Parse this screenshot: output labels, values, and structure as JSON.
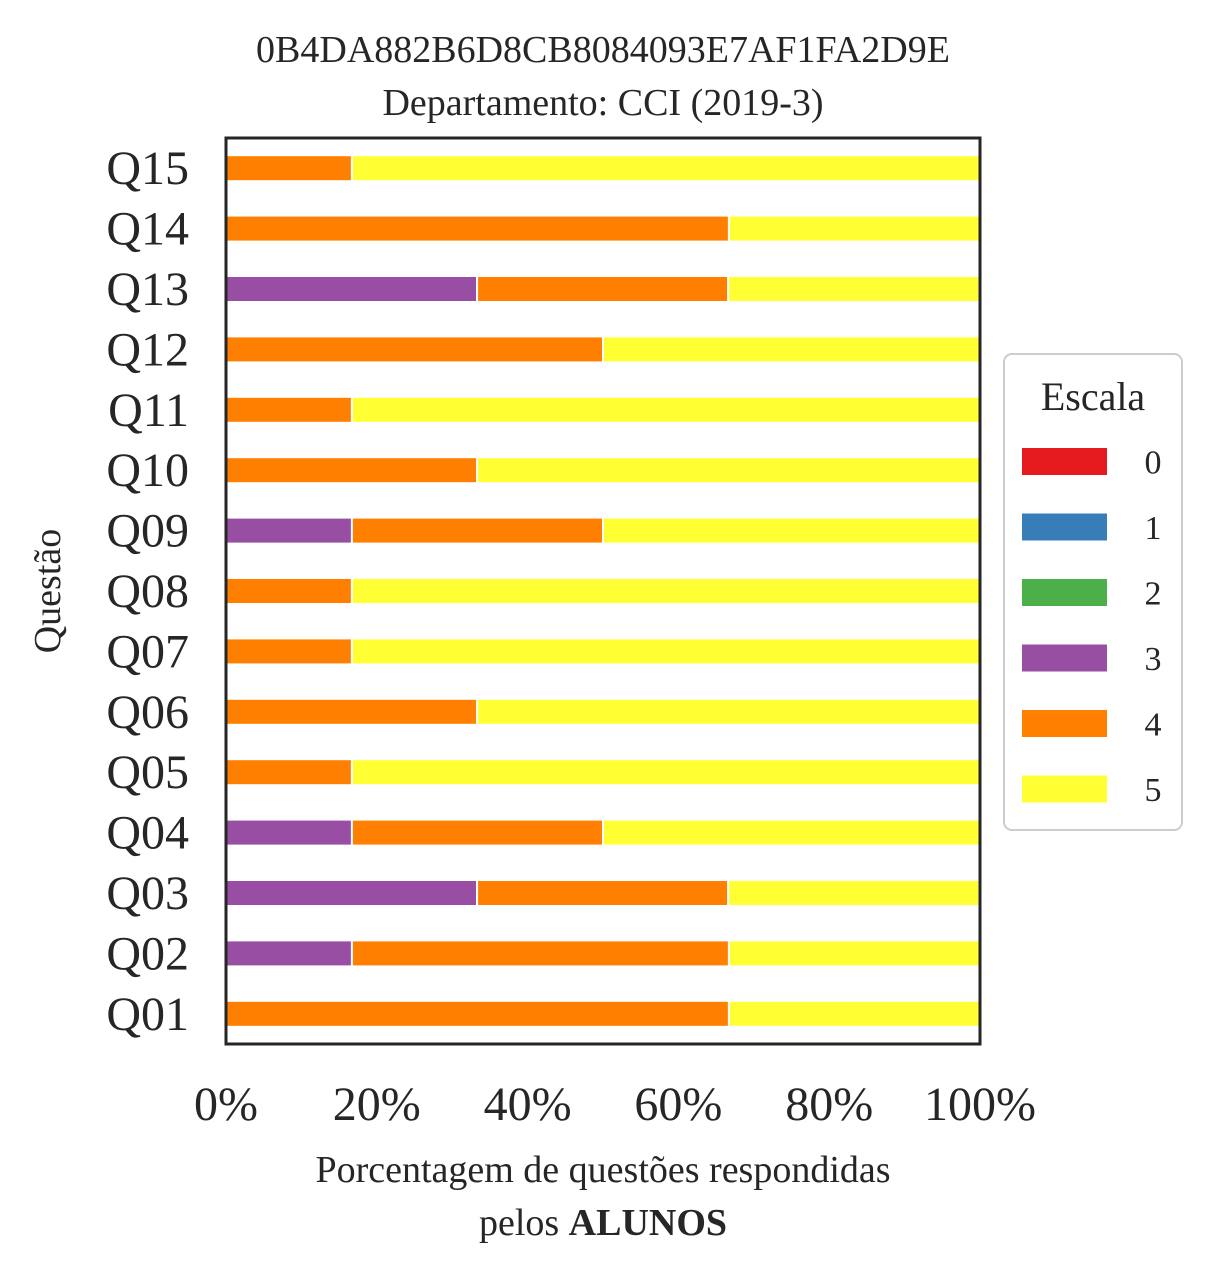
{
  "chart_data": {
    "type": "bar",
    "orientation": "horizontal",
    "stacked": true,
    "title": "0B4DA882B6D8CB8084093E7AF1FA2D9E",
    "subtitle": "Departamento: CCI (2019-3)",
    "xlabel": "Porcentagem de questões respondidas",
    "xlabel_line2_prefix": "pelos ",
    "xlabel_line2_bold": "ALUNOS",
    "ylabel": "Questão",
    "xlim": [
      0,
      100
    ],
    "x_ticks": [
      "0%",
      "20%",
      "40%",
      "60%",
      "80%",
      "100%"
    ],
    "x_tick_values": [
      0,
      20,
      40,
      60,
      80,
      100
    ],
    "categories": [
      "Q01",
      "Q02",
      "Q03",
      "Q04",
      "Q05",
      "Q06",
      "Q07",
      "Q08",
      "Q09",
      "Q10",
      "Q11",
      "Q12",
      "Q13",
      "Q14",
      "Q15"
    ],
    "legend": {
      "title": "Escala",
      "placement": "right"
    },
    "grid": false,
    "series": [
      {
        "name": "0",
        "color": "#e41a1c",
        "values": [
          0,
          0,
          0,
          0,
          0,
          0,
          0,
          0,
          0,
          0,
          0,
          0,
          0,
          0,
          0
        ]
      },
      {
        "name": "1",
        "color": "#377eb8",
        "values": [
          0,
          0,
          0,
          0,
          0,
          0,
          0,
          0,
          0,
          0,
          0,
          0,
          0,
          0,
          0
        ]
      },
      {
        "name": "2",
        "color": "#4daf4a",
        "values": [
          0,
          0,
          0,
          0,
          0,
          0,
          0,
          0,
          0,
          0,
          0,
          0,
          0,
          0,
          0
        ]
      },
      {
        "name": "3",
        "color": "#984ea3",
        "values": [
          0,
          16.7,
          33.3,
          16.7,
          0,
          0,
          0,
          0,
          16.7,
          0,
          0,
          0,
          33.3,
          0,
          0
        ]
      },
      {
        "name": "4",
        "color": "#ff7f00",
        "values": [
          66.7,
          50,
          33.3,
          33.3,
          16.7,
          33.3,
          16.7,
          16.7,
          33.3,
          33.3,
          16.7,
          50,
          33.3,
          66.7,
          16.7
        ]
      },
      {
        "name": "5",
        "color": "#ffff33",
        "values": [
          33.3,
          33.3,
          33.3,
          50,
          83.3,
          66.7,
          83.3,
          83.3,
          50,
          66.7,
          83.3,
          50,
          33.3,
          33.3,
          83.3
        ]
      }
    ]
  }
}
